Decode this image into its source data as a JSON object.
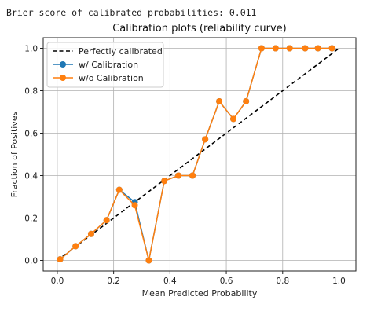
{
  "output_text": "Brier score of calibrated probabilities: 0.011",
  "colors": {
    "calibrated": "#1f77b4",
    "uncalibrated": "#ff7f0e",
    "perfect": "#000000",
    "grid": "#b0b0b0"
  },
  "chart_data": {
    "type": "line",
    "title": "Calibration plots  (reliability curve)",
    "xlabel": "Mean Predicted Probability",
    "ylabel": "Fraction of Positives",
    "xlim": [
      -0.05,
      1.06
    ],
    "ylim": [
      -0.05,
      1.05
    ],
    "xticks": [
      0.0,
      0.2,
      0.4,
      0.6,
      0.8,
      1.0
    ],
    "yticks": [
      0.0,
      0.2,
      0.4,
      0.6,
      0.8,
      1.0
    ],
    "xtick_labels": [
      "0.0",
      "0.2",
      "0.4",
      "0.6",
      "0.8",
      "1.0"
    ],
    "ytick_labels": [
      "0.0",
      "0.2",
      "0.4",
      "0.6",
      "0.8",
      "1.0"
    ],
    "grid": true,
    "legend_position": "top-left",
    "series": [
      {
        "name": "Perfectly calibrated",
        "style": "dashed",
        "x": [
          0.0,
          1.0
        ],
        "y": [
          0.0,
          1.0
        ]
      },
      {
        "name": "w/ Calibration",
        "style": "line-marker",
        "x": [
          0.01,
          0.065,
          0.12,
          0.175,
          0.22,
          0.275,
          0.325,
          0.38,
          0.43,
          0.48,
          0.525,
          0.575,
          0.625,
          0.67,
          0.725,
          0.775,
          0.825,
          0.88,
          0.925,
          0.975
        ],
        "y": [
          0.005,
          0.067,
          0.125,
          0.19,
          0.333,
          0.275,
          0.0,
          0.375,
          0.4,
          0.4,
          0.571,
          0.75,
          0.667,
          0.75,
          1.0,
          1.0,
          1.0,
          1.0,
          1.0,
          1.0
        ]
      },
      {
        "name": "w/o Calibration",
        "style": "line-marker",
        "x": [
          0.01,
          0.065,
          0.12,
          0.175,
          0.22,
          0.275,
          0.325,
          0.38,
          0.43,
          0.48,
          0.525,
          0.575,
          0.625,
          0.67,
          0.725,
          0.775,
          0.825,
          0.88,
          0.925,
          0.975
        ],
        "y": [
          0.005,
          0.067,
          0.125,
          0.19,
          0.333,
          0.26,
          0.0,
          0.375,
          0.4,
          0.4,
          0.571,
          0.75,
          0.667,
          0.75,
          1.0,
          1.0,
          1.0,
          1.0,
          1.0,
          1.0
        ]
      }
    ]
  }
}
